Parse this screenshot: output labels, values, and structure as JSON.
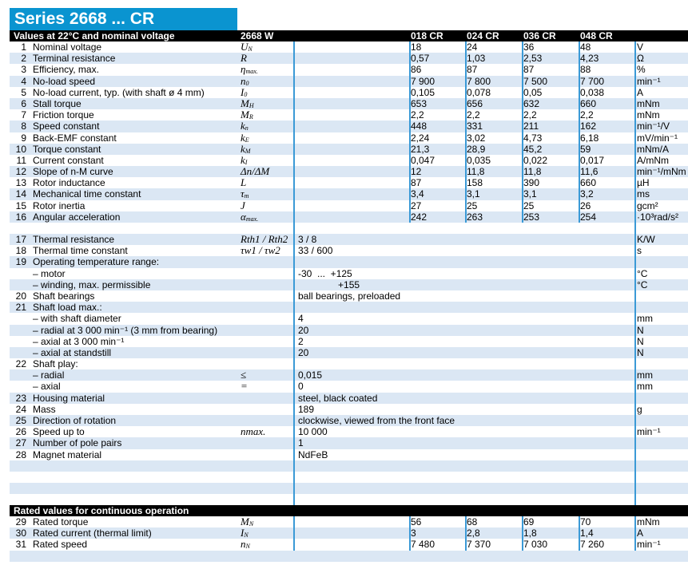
{
  "title": "Series 2668 ... CR",
  "header": {
    "label": "Values at 22°C and nominal voltage",
    "type": "2668 W",
    "variants": [
      "018 CR",
      "024 CR",
      "036 CR",
      "048 CR"
    ]
  },
  "section1": [
    {
      "n": "1",
      "label": "Nominal voltage",
      "sym": "U",
      "sub": "N",
      "values": [
        "18",
        "24",
        "36",
        "48"
      ],
      "unit": "V"
    },
    {
      "n": "2",
      "label": "Terminal resistance",
      "sym": "R",
      "sub": "",
      "values": [
        "0,57",
        "1,03",
        "2,53",
        "4,23"
      ],
      "unit": "Ω"
    },
    {
      "n": "3",
      "label": "Efficiency, max.",
      "sym": "η",
      "sub": "max.",
      "values": [
        "86",
        "87",
        "87",
        "88"
      ],
      "unit": "%"
    },
    {
      "n": "4",
      "label": "No-load speed",
      "sym": "n",
      "sub": "0",
      "values": [
        "7 900",
        "7 800",
        "7 500",
        "7 700"
      ],
      "unit": "min⁻¹"
    },
    {
      "n": "5",
      "label": "No-load current, typ. (with shaft ø 4 mm)",
      "sym": "I",
      "sub": "0",
      "values": [
        "0,105",
        "0,078",
        "0,05",
        "0,038"
      ],
      "unit": "A"
    },
    {
      "n": "6",
      "label": "Stall torque",
      "sym": "M",
      "sub": "H",
      "values": [
        "653",
        "656",
        "632",
        "660"
      ],
      "unit": "mNm"
    },
    {
      "n": "7",
      "label": "Friction torque",
      "sym": "M",
      "sub": "R",
      "values": [
        "2,2",
        "2,2",
        "2,2",
        "2,2"
      ],
      "unit": "mNm"
    },
    {
      "n": "8",
      "label": "Speed constant",
      "sym": "k",
      "sub": "n",
      "values": [
        "448",
        "331",
        "211",
        "162"
      ],
      "unit": "min⁻¹/V"
    },
    {
      "n": "9",
      "label": "Back-EMF constant",
      "sym": "k",
      "sub": "E",
      "values": [
        "2,24",
        "3,02",
        "4,73",
        "6,18"
      ],
      "unit": "mV/min⁻¹"
    },
    {
      "n": "10",
      "label": "Torque constant",
      "sym": "k",
      "sub": "M",
      "values": [
        "21,3",
        "28,9",
        "45,2",
        "59"
      ],
      "unit": "mNm/A"
    },
    {
      "n": "11",
      "label": "Current constant",
      "sym": "k",
      "sub": "I",
      "values": [
        "0,047",
        "0,035",
        "0,022",
        "0,017"
      ],
      "unit": "A/mNm"
    },
    {
      "n": "12",
      "label": "Slope of n-M curve",
      "sym": "Δn/ΔM",
      "sub": "",
      "values": [
        "12",
        "11,8",
        "11,8",
        "11,6"
      ],
      "unit": "min⁻¹/mNm"
    },
    {
      "n": "13",
      "label": "Rotor inductance",
      "sym": "L",
      "sub": "",
      "values": [
        "87",
        "158",
        "390",
        "660"
      ],
      "unit": "µH"
    },
    {
      "n": "14",
      "label": "Mechanical time constant",
      "sym": "τ",
      "sub": "m",
      "values": [
        "3,4",
        "3,1",
        "3,1",
        "3,2"
      ],
      "unit": "ms"
    },
    {
      "n": "15",
      "label": "Rotor inertia",
      "sym": "J",
      "sub": "",
      "values": [
        "27",
        "25",
        "25",
        "26"
      ],
      "unit": "gcm²"
    },
    {
      "n": "16",
      "label": "Angular acceleration",
      "sym": "α",
      "sub": "max.",
      "values": [
        "242",
        "263",
        "253",
        "254"
      ],
      "unit": "·10³rad/s²"
    }
  ],
  "section2": [
    {
      "n": "17",
      "label": "Thermal resistance",
      "sym": "Rth1 / Rth2",
      "value": "3 / 8",
      "unit": "K/W"
    },
    {
      "n": "18",
      "label": "Thermal time constant",
      "sym": "τw1 / τw2",
      "value": "33 / 600",
      "unit": "s"
    },
    {
      "n": "19",
      "label": "Operating temperature range:",
      "sym": "",
      "value": "",
      "unit": ""
    },
    {
      "n": "",
      "label": "– motor",
      "sym": "",
      "value": "-30  ...  +125",
      "unit": "°C"
    },
    {
      "n": "",
      "label": "– winding, max. permissible",
      "sym": "",
      "value": "               +155",
      "unit": "°C"
    },
    {
      "n": "20",
      "label": "Shaft bearings",
      "sym": "",
      "value": "ball bearings, preloaded",
      "unit": ""
    },
    {
      "n": "21",
      "label": "Shaft load max.:",
      "sym": "",
      "value": "",
      "unit": ""
    },
    {
      "n": "",
      "label": "– with shaft diameter",
      "sym": "",
      "value": "4",
      "unit": "mm"
    },
    {
      "n": "",
      "label": "– radial at 3 000 min⁻¹ (3 mm from bearing)",
      "sym": "",
      "value": "20",
      "unit": "N"
    },
    {
      "n": "",
      "label": "– axial at 3 000 min⁻¹",
      "sym": "",
      "value": "2",
      "unit": "N"
    },
    {
      "n": "",
      "label": "– axial at standstill",
      "sym": "",
      "value": "20",
      "unit": "N"
    },
    {
      "n": "22",
      "label": "Shaft play:",
      "sym": "",
      "value": "",
      "unit": ""
    },
    {
      "n": "",
      "label": "– radial",
      "sym": "≤",
      "value": "0,015",
      "unit": "mm"
    },
    {
      "n": "",
      "label": "– axial",
      "sym": "=",
      "value": "0",
      "unit": "mm"
    },
    {
      "n": "23",
      "label": "Housing material",
      "sym": "",
      "value": "steel, black coated",
      "unit": ""
    },
    {
      "n": "24",
      "label": "Mass",
      "sym": "",
      "value": "189",
      "unit": "g"
    },
    {
      "n": "25",
      "label": "Direction of rotation",
      "sym": "",
      "value": "clockwise, viewed from the front face",
      "unit": ""
    },
    {
      "n": "26",
      "label": "Speed up to",
      "sym": "nmax.",
      "value": "10 000",
      "unit": "min⁻¹"
    },
    {
      "n": "27",
      "label": "Number of pole pairs",
      "sym": "",
      "value": "1",
      "unit": ""
    },
    {
      "n": "28",
      "label": "Magnet material",
      "sym": "",
      "value": "NdFeB",
      "unit": ""
    }
  ],
  "rated": {
    "header": "Rated values for continuous operation",
    "rows": [
      {
        "n": "29",
        "label": "Rated torque",
        "sym": "M",
        "sub": "N",
        "values": [
          "56",
          "68",
          "69",
          "70"
        ],
        "unit": "mNm"
      },
      {
        "n": "30",
        "label": "Rated current (thermal limit)",
        "sym": "I",
        "sub": "N",
        "values": [
          "3",
          "2,8",
          "1,8",
          "1,4"
        ],
        "unit": "A"
      },
      {
        "n": "31",
        "label": "Rated speed",
        "sym": "n",
        "sub": "N",
        "values": [
          "7 480",
          "7 370",
          "7 030",
          "7 260"
        ],
        "unit": "min⁻¹"
      }
    ]
  },
  "colors": {
    "title_bg": "#0a94d0",
    "row_alt": "#dbe7f4",
    "grid_line": "#3b9ad6",
    "header_bg": "#000000"
  }
}
